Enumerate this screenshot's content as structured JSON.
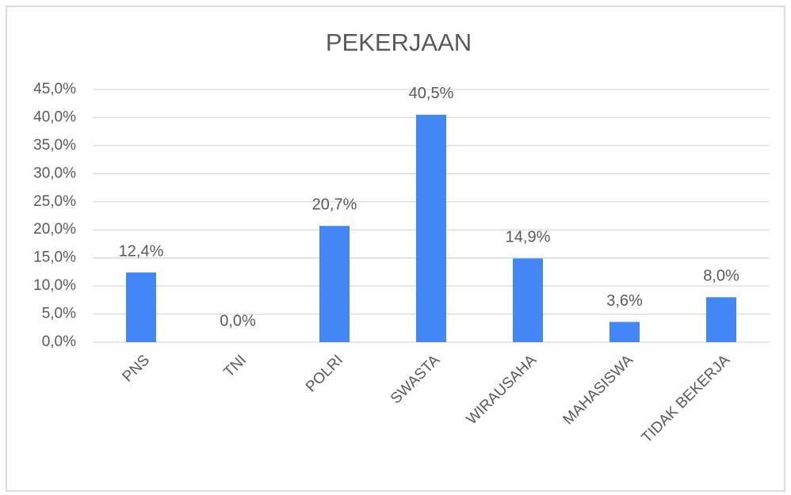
{
  "chart_data": {
    "type": "bar",
    "title": "PEKERJAAN",
    "categories": [
      "PNS",
      "TNI",
      "POLRI",
      "SWASTA",
      "WIRAUSAHA",
      "MAHASISWA",
      "TIDAK BEKERJA"
    ],
    "values": [
      12.4,
      0,
      20.7,
      40.5,
      14.9,
      3.6,
      8.0
    ],
    "value_labels": [
      "12,4%",
      "0,0%",
      "20,7%",
      "40,5%",
      "14,9%",
      "3,6%",
      "8,0%"
    ],
    "color": "#4287f5",
    "ylim": [
      0,
      45
    ],
    "yticks": [
      {
        "value": 0,
        "label": "0,0%"
      },
      {
        "value": 5,
        "label": "5,0%"
      },
      {
        "value": 10,
        "label": "10,0%"
      },
      {
        "value": 15,
        "label": "15,0%"
      },
      {
        "value": 20,
        "label": "20,0%"
      },
      {
        "value": 25,
        "label": "25,0%"
      },
      {
        "value": 30,
        "label": "30,0%"
      },
      {
        "value": 35,
        "label": "35,0%"
      },
      {
        "value": 40,
        "label": "40,0%"
      },
      {
        "value": 45,
        "label": "45,0%"
      }
    ],
    "grid": true
  }
}
